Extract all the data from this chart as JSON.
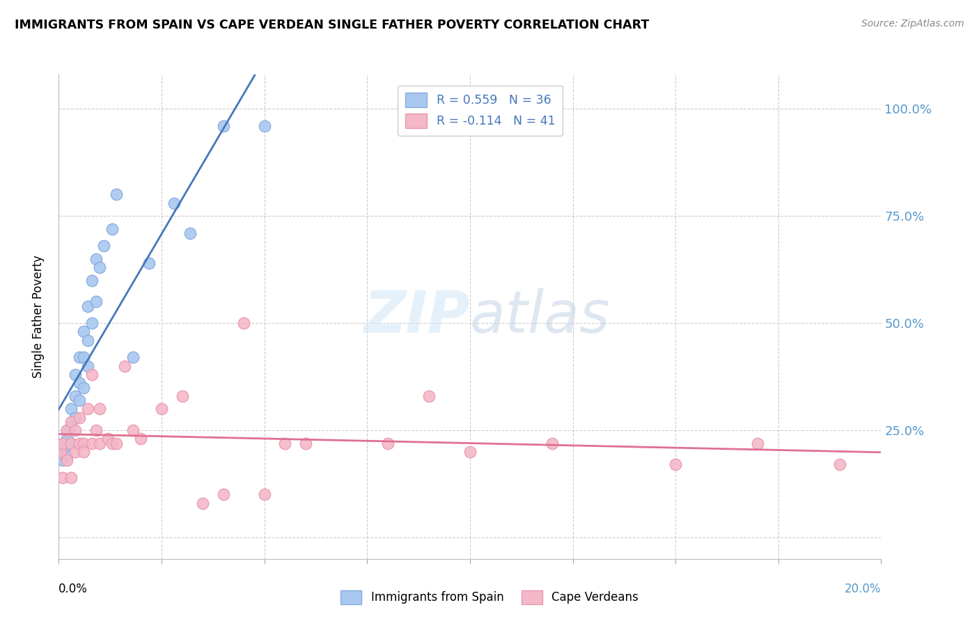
{
  "title": "IMMIGRANTS FROM SPAIN VS CAPE VERDEAN SINGLE FATHER POVERTY CORRELATION CHART",
  "source": "Source: ZipAtlas.com",
  "ylabel": "Single Father Poverty",
  "xlim": [
    0,
    0.2
  ],
  "ylim": [
    -0.05,
    1.08
  ],
  "spain_color": "#a8c8f0",
  "cape_verde_color": "#f4b8c8",
  "spain_edge": "#88aadd",
  "cape_verde_edge": "#e898b0",
  "trendline_spain_color": "#4477bb",
  "trendline_cape_color": "#e07090",
  "watermark_color": "#cce0f5",
  "spain_x": [
    0.0005,
    0.001,
    0.001,
    0.0015,
    0.002,
    0.002,
    0.002,
    0.003,
    0.003,
    0.003,
    0.004,
    0.004,
    0.004,
    0.005,
    0.005,
    0.005,
    0.006,
    0.006,
    0.006,
    0.007,
    0.007,
    0.007,
    0.008,
    0.008,
    0.009,
    0.009,
    0.01,
    0.011,
    0.013,
    0.014,
    0.018,
    0.022,
    0.028,
    0.032,
    0.04,
    0.05
  ],
  "spain_y": [
    0.2,
    0.18,
    0.22,
    0.21,
    0.19,
    0.23,
    0.25,
    0.22,
    0.26,
    0.3,
    0.28,
    0.33,
    0.38,
    0.32,
    0.36,
    0.42,
    0.35,
    0.42,
    0.48,
    0.4,
    0.46,
    0.54,
    0.5,
    0.6,
    0.55,
    0.65,
    0.63,
    0.68,
    0.72,
    0.8,
    0.42,
    0.64,
    0.78,
    0.71,
    0.96,
    0.96
  ],
  "cape_x": [
    0.0005,
    0.001,
    0.001,
    0.002,
    0.002,
    0.003,
    0.003,
    0.003,
    0.004,
    0.004,
    0.005,
    0.005,
    0.006,
    0.006,
    0.007,
    0.008,
    0.008,
    0.009,
    0.01,
    0.01,
    0.012,
    0.013,
    0.014,
    0.016,
    0.018,
    0.02,
    0.025,
    0.03,
    0.035,
    0.04,
    0.045,
    0.05,
    0.055,
    0.06,
    0.08,
    0.09,
    0.1,
    0.12,
    0.15,
    0.17,
    0.19
  ],
  "cape_y": [
    0.2,
    0.14,
    0.22,
    0.18,
    0.25,
    0.14,
    0.22,
    0.27,
    0.2,
    0.25,
    0.22,
    0.28,
    0.22,
    0.2,
    0.3,
    0.22,
    0.38,
    0.25,
    0.22,
    0.3,
    0.23,
    0.22,
    0.22,
    0.4,
    0.25,
    0.23,
    0.3,
    0.33,
    0.08,
    0.1,
    0.5,
    0.1,
    0.22,
    0.22,
    0.22,
    0.33,
    0.2,
    0.22,
    0.17,
    0.22,
    0.17
  ]
}
